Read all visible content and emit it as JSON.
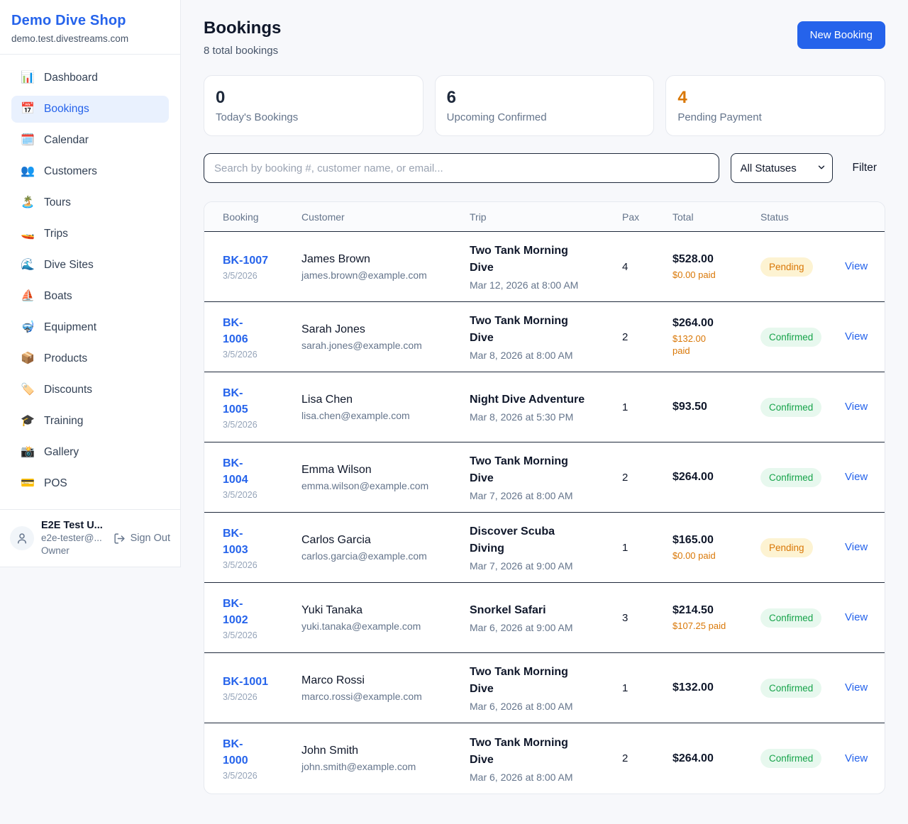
{
  "colors": {
    "accent": "#2563eb",
    "pending": "#d97706",
    "confirmed": "#16a34a"
  },
  "sidebar": {
    "brand": "Demo Dive Shop",
    "domain": "demo.test.divestreams.com",
    "items": [
      {
        "slug": "dashboard",
        "icon": "📊",
        "label": "Dashboard",
        "active": false
      },
      {
        "slug": "bookings",
        "icon": "📅",
        "label": "Bookings",
        "active": true
      },
      {
        "slug": "calendar",
        "icon": "🗓️",
        "label": "Calendar",
        "active": false
      },
      {
        "slug": "customers",
        "icon": "👥",
        "label": "Customers",
        "active": false
      },
      {
        "slug": "tours",
        "icon": "🏝️",
        "label": "Tours",
        "active": false
      },
      {
        "slug": "trips",
        "icon": "🚤",
        "label": "Trips",
        "active": false
      },
      {
        "slug": "dive-sites",
        "icon": "🌊",
        "label": "Dive Sites",
        "active": false
      },
      {
        "slug": "boats",
        "icon": "⛵",
        "label": "Boats",
        "active": false
      },
      {
        "slug": "equipment",
        "icon": "🤿",
        "label": "Equipment",
        "active": false
      },
      {
        "slug": "products",
        "icon": "📦",
        "label": "Products",
        "active": false
      },
      {
        "slug": "discounts",
        "icon": "🏷️",
        "label": "Discounts",
        "active": false
      },
      {
        "slug": "training",
        "icon": "🎓",
        "label": "Training",
        "active": false
      },
      {
        "slug": "gallery",
        "icon": "📸",
        "label": "Gallery",
        "active": false
      },
      {
        "slug": "pos",
        "icon": "💳",
        "label": "POS",
        "active": false
      }
    ],
    "user": {
      "name": "E2E Test U...",
      "email": "e2e-tester@...",
      "role": "Owner",
      "sign_out": "Sign Out"
    }
  },
  "header": {
    "title": "Bookings",
    "subtitle": "8 total bookings",
    "new_booking": "New Booking"
  },
  "stats": [
    {
      "value": "0",
      "label": "Today's Bookings",
      "accent": false
    },
    {
      "value": "6",
      "label": "Upcoming Confirmed",
      "accent": false
    },
    {
      "value": "4",
      "label": "Pending Payment",
      "accent": true
    }
  ],
  "search": {
    "placeholder": "Search by booking #, customer name, or email..."
  },
  "filter": {
    "selected": "All Statuses",
    "button_label": "Filter"
  },
  "table": {
    "columns": [
      "Booking",
      "Customer",
      "Trip",
      "Pax",
      "Total",
      "Status",
      ""
    ],
    "rows": [
      {
        "id_display": "BK-1007",
        "date": "3/5/2026",
        "customer": "James Brown",
        "email": "james.brown@example.com",
        "trip": "Two Tank Morning\nDive",
        "trip_date": "Mar 12, 2026 at 8:00 AM",
        "pax": "4",
        "total": "$528.00",
        "paid": "$0.00 paid",
        "status": "Pending",
        "status_type": "pending",
        "view": "View"
      },
      {
        "id_display": "BK-\n1006",
        "date": "3/5/2026",
        "customer": "Sarah Jones",
        "email": "sarah.jones@example.com",
        "trip": "Two Tank Morning\nDive",
        "trip_date": "Mar 8, 2026 at 8:00 AM",
        "pax": "2",
        "total": "$264.00",
        "paid": "$132.00\npaid",
        "status": "Confirmed",
        "status_type": "confirmed",
        "view": "View"
      },
      {
        "id_display": "BK-\n1005",
        "date": "3/5/2026",
        "customer": "Lisa Chen",
        "email": "lisa.chen@example.com",
        "trip": "Night Dive Adventure",
        "trip_date": "Mar 8, 2026 at 5:30 PM",
        "pax": "1",
        "total": "$93.50",
        "paid": "",
        "status": "Confirmed",
        "status_type": "confirmed",
        "view": "View"
      },
      {
        "id_display": "BK-\n1004",
        "date": "3/5/2026",
        "customer": "Emma Wilson",
        "email": "emma.wilson@example.com",
        "trip": "Two Tank Morning\nDive",
        "trip_date": "Mar 7, 2026 at 8:00 AM",
        "pax": "2",
        "total": "$264.00",
        "paid": "",
        "status": "Confirmed",
        "status_type": "confirmed",
        "view": "View"
      },
      {
        "id_display": "BK-\n1003",
        "date": "3/5/2026",
        "customer": "Carlos Garcia",
        "email": "carlos.garcia@example.com",
        "trip": "Discover Scuba\nDiving",
        "trip_date": "Mar 7, 2026 at 9:00 AM",
        "pax": "1",
        "total": "$165.00",
        "paid": "$0.00 paid",
        "status": "Pending",
        "status_type": "pending",
        "view": "View"
      },
      {
        "id_display": "BK-\n1002",
        "date": "3/5/2026",
        "customer": "Yuki Tanaka",
        "email": "yuki.tanaka@example.com",
        "trip": "Snorkel Safari",
        "trip_date": "Mar 6, 2026 at 9:00 AM",
        "pax": "3",
        "total": "$214.50",
        "paid": "$107.25 paid",
        "status": "Confirmed",
        "status_type": "confirmed",
        "view": "View"
      },
      {
        "id_display": "BK-1001",
        "date": "3/5/2026",
        "customer": "Marco Rossi",
        "email": "marco.rossi@example.com",
        "trip": "Two Tank Morning\nDive",
        "trip_date": "Mar 6, 2026 at 8:00 AM",
        "pax": "1",
        "total": "$132.00",
        "paid": "",
        "status": "Confirmed",
        "status_type": "confirmed",
        "view": "View"
      },
      {
        "id_display": "BK-\n1000",
        "date": "3/5/2026",
        "customer": "John Smith",
        "email": "john.smith@example.com",
        "trip": "Two Tank Morning\nDive",
        "trip_date": "Mar 6, 2026 at 8:00 AM",
        "pax": "2",
        "total": "$264.00",
        "paid": "",
        "status": "Confirmed",
        "status_type": "confirmed",
        "view": "View"
      }
    ]
  }
}
